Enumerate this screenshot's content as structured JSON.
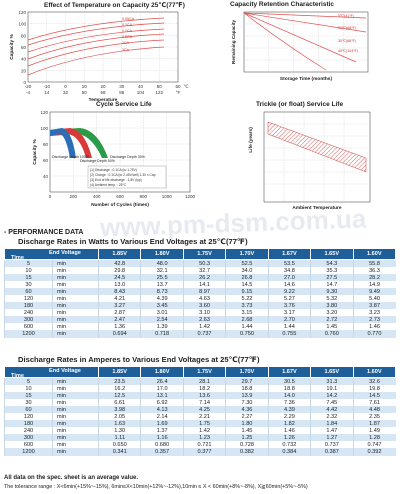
{
  "charts": {
    "temp_capacity": {
      "title": "Effect of Temperature on Capacity  25℃(77℉)",
      "ylabel": "Capacity %",
      "xlabel": "Temperature",
      "y_ticks": [
        "120",
        "100",
        "80",
        "60",
        "40",
        "20",
        "0"
      ],
      "x_ticks_c": [
        "-20",
        "-10",
        "0",
        "10",
        "20",
        "30",
        "40",
        "50",
        "60"
      ],
      "x_ticks_f": [
        "-4",
        "14",
        "32",
        "50",
        "68",
        "86",
        "104",
        "122",
        "°F"
      ],
      "c_unit": "℃",
      "curve_labels": [
        "0.05CA",
        "0.1CA",
        "0.2CA",
        "0.5CA",
        "1CA",
        "3CA"
      ]
    },
    "capacity_retention": {
      "title": "Capacity Retention Characteristic",
      "ylabel": "Remaining Capacity",
      "xlabel": "Storage Time (months)",
      "curve_labels": [
        "5℃(41℉)",
        "20℃(68℉)",
        "30℃(86℉)",
        "40℃(104℉)"
      ]
    },
    "cycle_life": {
      "title": "Cycle Service Life",
      "ylabel": "Capacity %",
      "xlabel": "Number of Cycles (times)",
      "x_ticks": [
        "0",
        "200",
        "400",
        "600",
        "800",
        "1000",
        "1200"
      ],
      "y_ticks": [
        "120",
        "100",
        "80",
        "60",
        "40"
      ],
      "labels": [
        "Discharge Depth 100%",
        "Discharge Depth 50%",
        "Discharge Depth 30%"
      ],
      "notes": [
        "(1) Discharge : 0.1CA (to 1.75V)",
        "(2) Charge : 0.1CA (to 2.45V/cell) 1.30 x Cap",
        "(3) End of life discharge : 1.8V (typ)",
        "(4) Ambient temp. : 25℃"
      ]
    },
    "trickle_life": {
      "title": "Trickle (or float) Service Life",
      "ylabel": "Life (years)",
      "xlabel": "Ambient Temperature"
    }
  },
  "section_title": "- PERFORMANCE DATA",
  "table_watts": {
    "title": "Discharge Rates in Watts to Various End Voltages at 25℃(77℉)",
    "end_voltage_label": "End Voltage",
    "time_label": "Time",
    "voltages": [
      "1.85V",
      "1.80V",
      "1.75V",
      "1.70V",
      "1.67V",
      "1.65V",
      "1.60V"
    ],
    "rows": [
      {
        "t": "5",
        "u": "min",
        "v": [
          "42.8",
          "48.0",
          "50.3",
          "52.5",
          "53.5",
          "54.3",
          "55.8"
        ]
      },
      {
        "t": "10",
        "u": "min",
        "v": [
          "29.8",
          "32.1",
          "32.7",
          "34.0",
          "34.8",
          "35.3",
          "36.3"
        ]
      },
      {
        "t": "15",
        "u": "min",
        "v": [
          "24.5",
          "25.5",
          "26.2",
          "26.8",
          "27.0",
          "27.5",
          "28.2"
        ]
      },
      {
        "t": "30",
        "u": "min",
        "v": [
          "13.0",
          "13.7",
          "14.1",
          "14.5",
          "14.6",
          "14.7",
          "14.9"
        ]
      },
      {
        "t": "60",
        "u": "min",
        "v": [
          "8.43",
          "8.73",
          "8.97",
          "9.15",
          "9.22",
          "9.30",
          "9.49"
        ]
      },
      {
        "t": "120",
        "u": "min",
        "v": [
          "4.21",
          "4.39",
          "4.63",
          "5.22",
          "5.27",
          "5.32",
          "5.40"
        ]
      },
      {
        "t": "180",
        "u": "min",
        "v": [
          "3.27",
          "3.45",
          "3.60",
          "3.73",
          "3.76",
          "3.80",
          "3.87"
        ]
      },
      {
        "t": "240",
        "u": "min",
        "v": [
          "2.87",
          "3.01",
          "3.10",
          "3.15",
          "3.17",
          "3.20",
          "3.23"
        ]
      },
      {
        "t": "300",
        "u": "min",
        "v": [
          "2.47",
          "2.54",
          "2.63",
          "2.68",
          "2.70",
          "2.72",
          "2.73"
        ]
      },
      {
        "t": "600",
        "u": "min",
        "v": [
          "1.36",
          "1.39",
          "1.42",
          "1.44",
          "1.44",
          "1.45",
          "1.46"
        ]
      },
      {
        "t": "1200",
        "u": "min",
        "v": [
          "0.694",
          "0.718",
          "0.737",
          "0.750",
          "0.755",
          "0.760",
          "0.770"
        ]
      }
    ]
  },
  "table_amps": {
    "title": "Discharge Rates in Amperes to Various End Voltages at 25℃(77℉)",
    "end_voltage_label": "End Voltage",
    "time_label": "Time",
    "voltages": [
      "1.85V",
      "1.80V",
      "1.75V",
      "1.70V",
      "1.67V",
      "1.65V",
      "1.60V"
    ],
    "rows": [
      {
        "t": "5",
        "u": "min",
        "v": [
          "23.5",
          "26.4",
          "28.1",
          "29.7",
          "30.5",
          "31.3",
          "32.6"
        ]
      },
      {
        "t": "10",
        "u": "min",
        "v": [
          "16.2",
          "17.0",
          "18.2",
          "18.8",
          "18.8",
          "19.1",
          "19.8"
        ]
      },
      {
        "t": "15",
        "u": "min",
        "v": [
          "12.5",
          "13.1",
          "13.6",
          "13.9",
          "14.0",
          "14.2",
          "14.5"
        ]
      },
      {
        "t": "30",
        "u": "min",
        "v": [
          "6.61",
          "6.92",
          "7.14",
          "7.30",
          "7.36",
          "7.45",
          "7.61"
        ]
      },
      {
        "t": "60",
        "u": "min",
        "v": [
          "3.98",
          "4.13",
          "4.25",
          "4.36",
          "4.39",
          "4.42",
          "4.48"
        ]
      },
      {
        "t": "120",
        "u": "min",
        "v": [
          "2.05",
          "2.14",
          "2.21",
          "2.27",
          "2.29",
          "2.32",
          "2.35"
        ]
      },
      {
        "t": "180",
        "u": "min",
        "v": [
          "1.63",
          "1.69",
          "1.75",
          "1.80",
          "1.82",
          "1.84",
          "1.87"
        ]
      },
      {
        "t": "240",
        "u": "min",
        "v": [
          "1.30",
          "1.37",
          "1.42",
          "1.45",
          "1.46",
          "1.47",
          "1.49"
        ]
      },
      {
        "t": "300",
        "u": "min",
        "v": [
          "1.11",
          "1.16",
          "1.23",
          "1.25",
          "1.26",
          "1.27",
          "1.28"
        ]
      },
      {
        "t": "600",
        "u": "min",
        "v": [
          "0.650",
          "0.680",
          "0.721",
          "0.728",
          "0.732",
          "0.737",
          "0.747"
        ]
      },
      {
        "t": "1200",
        "u": "min",
        "v": [
          "0.341",
          "0.357",
          "0.377",
          "0.382",
          "0.384",
          "0.387",
          "0.392"
        ]
      }
    ]
  },
  "footer": {
    "note": "All data on the spec. sheet is an average value.",
    "tolerance": "The tolerance range : X<6min(+15%~-15%), 6min≤X<10min(+12%~-12%),10min ≤ X < 60min(+8%~-8%), X≧60min(+5%~-5%)"
  },
  "watermark": "www.pm-dsm.com.ua"
}
